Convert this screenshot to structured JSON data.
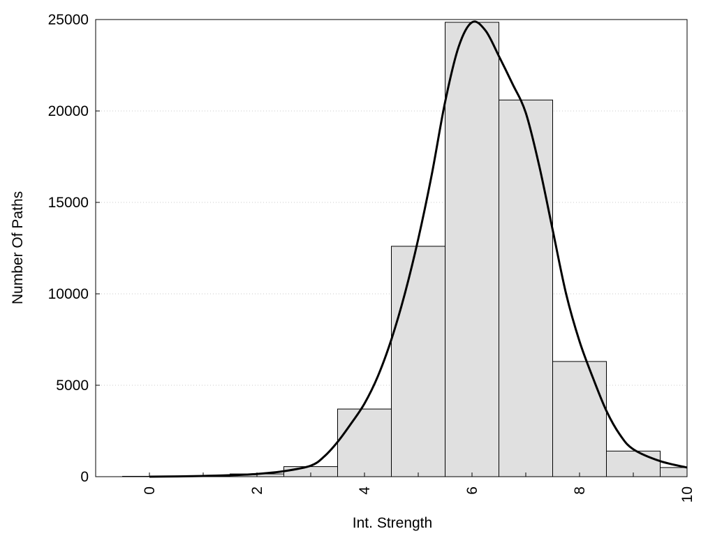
{
  "chart_data": {
    "type": "bar",
    "xlabel": "Int. Strength",
    "ylabel": "Number Of Paths",
    "xlim": [
      -1,
      10
    ],
    "ylim": [
      0,
      25000
    ],
    "x_ticks": [
      "0",
      "2",
      "4",
      "6",
      "8",
      "10"
    ],
    "y_ticks": [
      "0",
      "5000",
      "10000",
      "15000",
      "20000",
      "25000"
    ],
    "grid": "horizontal dotted",
    "bar_color": "#e0e0e0",
    "bins": [
      {
        "x": 0,
        "value": 20
      },
      {
        "x": 1,
        "value": 40
      },
      {
        "x": 2,
        "value": 150
      },
      {
        "x": 3,
        "value": 550
      },
      {
        "x": 4,
        "value": 3700
      },
      {
        "x": 5,
        "value": 12600
      },
      {
        "x": 6,
        "value": 24850
      },
      {
        "x": 7,
        "value": 20600
      },
      {
        "x": 8,
        "value": 6300
      },
      {
        "x": 9,
        "value": 1400
      },
      {
        "x": 10,
        "value": 500
      }
    ],
    "curve": {
      "x": [
        0,
        0.5,
        1,
        1.5,
        2,
        2.5,
        3,
        3.25,
        3.5,
        3.75,
        4,
        4.25,
        4.5,
        4.75,
        5,
        5.25,
        5.5,
        5.75,
        6,
        6.25,
        6.5,
        6.75,
        7,
        7.25,
        7.5,
        7.75,
        8,
        8.25,
        8.5,
        8.75,
        9,
        9.5,
        10
      ],
      "y": [
        0,
        15,
        40,
        80,
        150,
        300,
        600,
        1100,
        1900,
        2900,
        4000,
        5500,
        7500,
        10000,
        13000,
        16500,
        20500,
        23500,
        24850,
        24400,
        23000,
        21500,
        19900,
        17000,
        13500,
        10000,
        7400,
        5400,
        3600,
        2300,
        1500,
        850,
        500
      ]
    }
  }
}
